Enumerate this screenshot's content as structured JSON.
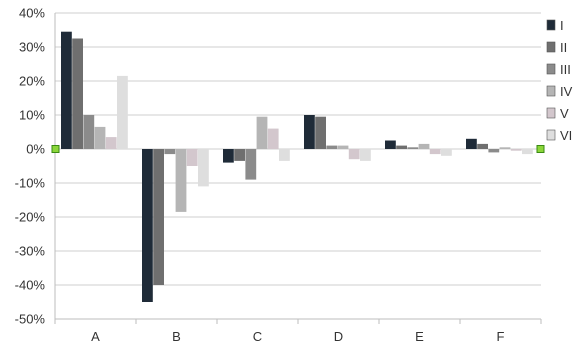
{
  "chart_data": {
    "type": "bar",
    "categories": [
      "A",
      "B",
      "C",
      "D",
      "E",
      "F"
    ],
    "ylim": [
      -50,
      40
    ],
    "yticks": [
      40,
      30,
      20,
      10,
      0,
      -10,
      -20,
      -30,
      -40,
      -50
    ],
    "ytick_labels": [
      "40%",
      "30%",
      "20%",
      "10%",
      "0%",
      "-10%",
      "-20%",
      "-30%",
      "-40%",
      "-50%"
    ],
    "grid": true,
    "legend_position": "right",
    "series": [
      {
        "name": "I",
        "color": "#1f2b38",
        "values": [
          34.5,
          -45.0,
          -4.0,
          10.0,
          2.5,
          3.0
        ]
      },
      {
        "name": "II",
        "color": "#6f6f6f",
        "values": [
          32.5,
          -40.0,
          -3.5,
          9.5,
          1.0,
          1.5
        ]
      },
      {
        "name": "III",
        "color": "#8b8b8b",
        "values": [
          10.0,
          -1.5,
          -9.0,
          1.0,
          0.5,
          -1.0
        ]
      },
      {
        "name": "IV",
        "color": "#b5b5b5",
        "values": [
          6.5,
          -18.5,
          9.5,
          1.0,
          1.5,
          0.5
        ]
      },
      {
        "name": "V",
        "color": "#d3c7cd",
        "values": [
          3.5,
          -5.0,
          6.0,
          -3.0,
          -1.5,
          -0.5
        ]
      },
      {
        "name": "VI",
        "color": "#dedede",
        "values": [
          21.5,
          -11.0,
          -3.5,
          -3.5,
          -2.0,
          -1.5
        ]
      }
    ]
  }
}
